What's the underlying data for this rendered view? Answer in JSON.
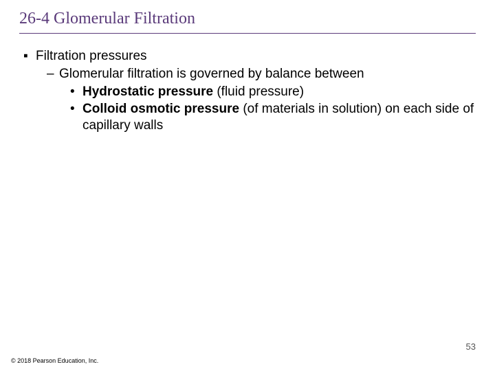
{
  "title": "26-4 Glomerular Filtration",
  "title_color": "#5a3a7a",
  "title_fontsize": 24,
  "underline_color": "#5a3a7a",
  "body_fontsize": 19,
  "body_color": "#000000",
  "background_color": "#ffffff",
  "bullets": {
    "lvl1_glyph": "▪",
    "lvl2_glyph": "–",
    "lvl3_glyph": "•"
  },
  "content": {
    "l1": "Filtration pressures",
    "l2": "Glomerular filtration is governed by balance between",
    "l3a_bold": "Hydrostatic pressure",
    "l3a_rest": " (fluid pressure)",
    "l3b_bold": "Colloid osmotic pressure",
    "l3b_rest": " (of materials in solution) on each side of capillary walls"
  },
  "page_number": "53",
  "copyright": "© 2018 Pearson Education, Inc."
}
